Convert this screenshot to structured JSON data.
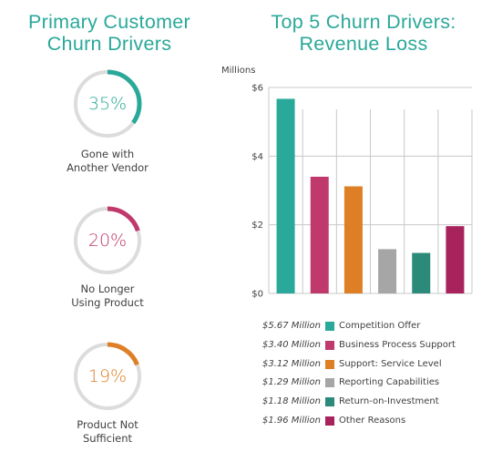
{
  "left_title": "Primary Customer\nChurn Drivers",
  "right_title": "Top 5 Churn Drivers:\nRevenue Loss",
  "donuts": [
    {
      "percent": "35%",
      "fraction": 0.35,
      "label": "Gone with\nAnother Vendor",
      "color": "#2aa899"
    },
    {
      "percent": "20%",
      "fraction": 0.2,
      "label": "No Longer\nUsing Product",
      "color": "#c0396d"
    },
    {
      "percent": "19%",
      "fraction": 0.19,
      "label": "Product Not\nSufficient",
      "color": "#de7f26"
    }
  ],
  "chart_data": {
    "type": "bar",
    "title": "Top 5 Churn Drivers:\nRevenue Loss",
    "ylabel": "Millions",
    "ylim": [
      0,
      6
    ],
    "yticks": [
      0,
      2,
      4,
      6
    ],
    "ytick_labels": [
      "$0",
      "$2",
      "$4",
      "$6"
    ],
    "grid": true,
    "categories": [
      "Competition Offer",
      "Business Process Support",
      "Support: Service Level",
      "Reporting Capabilities",
      "Return-on-Investment",
      "Other Reasons"
    ],
    "values": [
      5.67,
      3.4,
      3.12,
      1.29,
      1.18,
      1.96
    ],
    "value_labels": [
      "$5.67 Million",
      "$3.40 Million",
      "$3.12 Million",
      "$1.29 Million",
      "$1.18 Million",
      "$1.96 Million"
    ],
    "colors": [
      "#2aa899",
      "#c0396d",
      "#de7f26",
      "#a6a6a6",
      "#2b8a79",
      "#a8225c"
    ],
    "legend_position": "bottom"
  }
}
